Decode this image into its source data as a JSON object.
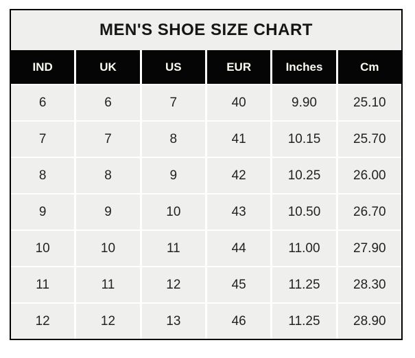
{
  "title": "MEN'S SHOE SIZE CHART",
  "table": {
    "columns": [
      "IND",
      "UK",
      "US",
      "EUR",
      "Inches",
      "Cm"
    ],
    "rows": [
      [
        "6",
        "6",
        "7",
        "40",
        "9.90",
        "25.10"
      ],
      [
        "7",
        "7",
        "8",
        "41",
        "10.15",
        "25.70"
      ],
      [
        "8",
        "8",
        "9",
        "42",
        "10.25",
        "26.00"
      ],
      [
        "9",
        "9",
        "10",
        "43",
        "10.50",
        "26.70"
      ],
      [
        "10",
        "10",
        "11",
        "44",
        "11.00",
        "27.90"
      ],
      [
        "11",
        "11",
        "12",
        "45",
        "11.25",
        "28.30"
      ],
      [
        "12",
        "12",
        "13",
        "46",
        "11.25",
        "28.90"
      ]
    ]
  },
  "colors": {
    "outer_border": "#000000",
    "title_background": "#efefed",
    "header_background": "#050505",
    "header_text": "#fbfbf2",
    "cell_background": "#eff0ee",
    "cell_text": "#222222",
    "separator": "#ffffff",
    "page_background": "#ffffff"
  },
  "chart_data": {
    "type": "table",
    "title": "MEN'S SHOE SIZE CHART",
    "columns": [
      "IND",
      "UK",
      "US",
      "EUR",
      "Inches",
      "Cm"
    ],
    "rows": [
      [
        6,
        6,
        7,
        40,
        9.9,
        25.1
      ],
      [
        7,
        7,
        8,
        41,
        10.15,
        25.7
      ],
      [
        8,
        8,
        9,
        42,
        10.25,
        26.0
      ],
      [
        9,
        9,
        10,
        43,
        10.5,
        26.7
      ],
      [
        10,
        10,
        11,
        44,
        11.0,
        27.9
      ],
      [
        11,
        11,
        12,
        45,
        11.25,
        28.3
      ],
      [
        12,
        12,
        13,
        46,
        11.25,
        28.9
      ]
    ],
    "layout": {
      "grid": "white separators between cells",
      "header_style": "black background, white bold text",
      "title_position": "top, centered, spans all columns"
    }
  }
}
